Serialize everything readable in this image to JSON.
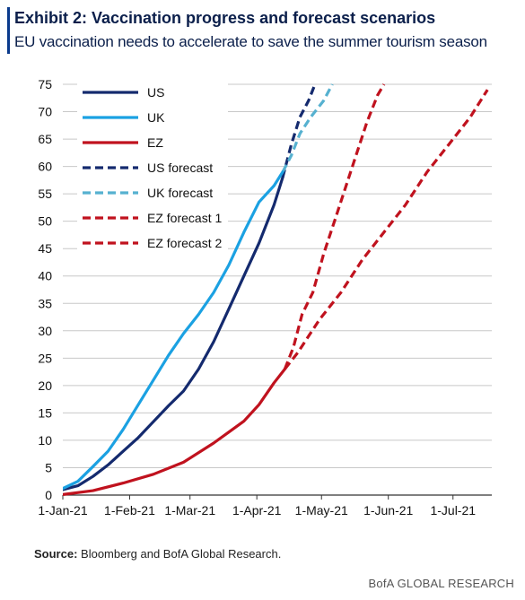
{
  "header": {
    "title": "Exhibit 2: Vaccination progress and forecast scenarios",
    "subtitle": "EU vaccination needs to accelerate to save the summer tourism season"
  },
  "source": {
    "label": "Source:",
    "text": "Bloomberg and BofA Global Research."
  },
  "footer": {
    "brand": "BofA GLOBAL RESEARCH"
  },
  "colors": {
    "us": "#142a6e",
    "uk": "#1ba1e2",
    "ez": "#c0121e",
    "us_forecast": "#142a6e",
    "uk_forecast": "#56b1d0",
    "ez_forecast": "#c0121e"
  },
  "chart_data": {
    "type": "line",
    "title": "",
    "xlabel": "",
    "ylabel": "",
    "x_axis": "day of year 2021 (day 1 = 1-Jan-21)",
    "xlim": [
      1,
      200
    ],
    "ylim": [
      0,
      75
    ],
    "yticks": [
      0,
      5,
      10,
      15,
      20,
      25,
      30,
      35,
      40,
      45,
      50,
      55,
      60,
      65,
      70,
      75
    ],
    "xticks": [
      {
        "x": 1,
        "label": "1-Jan-21"
      },
      {
        "x": 32,
        "label": "1-Feb-21"
      },
      {
        "x": 60,
        "label": "1-Mar-21"
      },
      {
        "x": 91,
        "label": "1-Apr-21"
      },
      {
        "x": 121,
        "label": "1-May-21"
      },
      {
        "x": 152,
        "label": "1-Jun-21"
      },
      {
        "x": 182,
        "label": "1-Jul-21"
      }
    ],
    "grid": true,
    "legend_position": "top-left",
    "series": [
      {
        "name": "US",
        "color": "#142a6e",
        "dash": false,
        "x": [
          1,
          8,
          15,
          22,
          29,
          36,
          43,
          50,
          57,
          64,
          71,
          78,
          85,
          92,
          99,
          103
        ],
        "y": [
          1,
          1.7,
          3.4,
          5.5,
          8,
          10.5,
          13.4,
          16.3,
          19,
          23,
          28,
          34,
          40,
          46,
          53,
          58
        ]
      },
      {
        "name": "UK",
        "color": "#1ba1e2",
        "dash": false,
        "x": [
          1,
          8,
          15,
          22,
          29,
          36,
          43,
          50,
          57,
          64,
          71,
          78,
          85,
          92,
          99,
          103
        ],
        "y": [
          1.2,
          2.5,
          5.2,
          8,
          12,
          16.5,
          21,
          25.5,
          29.5,
          33,
          37,
          42,
          48,
          53.5,
          56.5,
          59
        ]
      },
      {
        "name": "EZ",
        "color": "#c0121e",
        "dash": false,
        "x": [
          1,
          15,
          29,
          43,
          57,
          71,
          85,
          92,
          99,
          104
        ],
        "y": [
          0.1,
          0.8,
          2.2,
          3.8,
          6,
          9.5,
          13.5,
          16.5,
          20.5,
          23
        ]
      },
      {
        "name": "US forecast",
        "color": "#142a6e",
        "dash": true,
        "x": [
          103,
          107,
          111,
          115,
          118
        ],
        "y": [
          58,
          64,
          69,
          72,
          75
        ]
      },
      {
        "name": "UK forecast",
        "color": "#56b1d0",
        "dash": true,
        "x": [
          103,
          107,
          111,
          116,
          122,
          126
        ],
        "y": [
          59,
          62,
          66,
          69,
          72,
          75
        ]
      },
      {
        "name": "EZ forecast 1",
        "color": "#c0121e",
        "dash": true,
        "x": [
          104,
          108,
          112,
          117,
          122,
          127,
          132,
          137,
          142,
          147,
          150
        ],
        "y": [
          23,
          27,
          33,
          37,
          44,
          50,
          56,
          62,
          68,
          73,
          75
        ]
      },
      {
        "name": "EZ forecast 2",
        "color": "#c0121e",
        "dash": true,
        "x": [
          104,
          110,
          120,
          130,
          140,
          150,
          160,
          170,
          180,
          190,
          198
        ],
        "y": [
          23,
          26,
          32,
          37,
          43,
          48,
          53,
          59,
          64,
          69,
          74
        ]
      }
    ]
  }
}
